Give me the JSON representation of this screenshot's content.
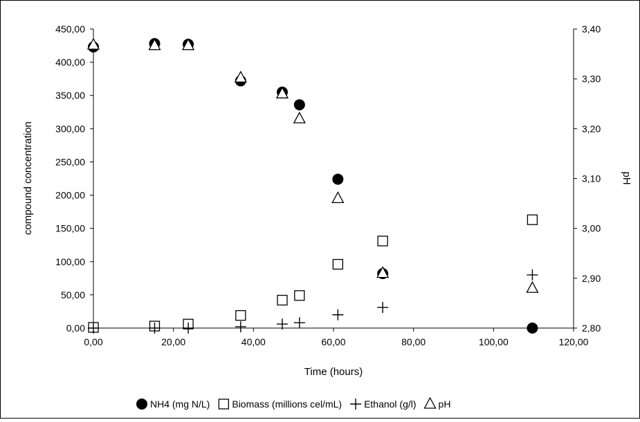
{
  "chart_data": {
    "type": "scatter",
    "xlabel": "Time (hours)",
    "ylabel": "compound concentration",
    "y2label": "pH",
    "xlim": [
      0,
      120
    ],
    "ylim": [
      0,
      450
    ],
    "y2lim": [
      2.8,
      3.4
    ],
    "x_ticks": [
      "0,00",
      "20,00",
      "40,00",
      "60,00",
      "80,00",
      "100,00",
      "120,00"
    ],
    "y_ticks": [
      "0,00",
      "50,00",
      "100,00",
      "150,00",
      "200,00",
      "250,00",
      "300,00",
      "350,00",
      "400,00",
      "450,00"
    ],
    "y2_ticks": [
      "2,80",
      "2,90",
      "3,00",
      "3,10",
      "3,20",
      "3,30",
      "3,40"
    ],
    "grid": false,
    "legend_position": "bottom",
    "series": [
      {
        "name": "NH4 (mg N/L)",
        "axis": "left",
        "marker": "filled-circle",
        "x": [
          0,
          15.3,
          23.7,
          36.8,
          47.2,
          51.5,
          61.1,
          72.3,
          109.7
        ],
        "y": [
          423,
          428,
          427,
          372,
          355,
          336,
          224,
          82,
          0
        ]
      },
      {
        "name": "Biomass (millions cel/mL)",
        "axis": "left",
        "marker": "open-square",
        "x": [
          0,
          15.3,
          23.7,
          36.8,
          47.2,
          51.5,
          61.1,
          72.3,
          109.7
        ],
        "y": [
          1,
          3,
          6,
          19,
          42,
          49,
          96,
          131,
          163
        ]
      },
      {
        "name": "Ethanol (g/l)",
        "axis": "left",
        "marker": "plus",
        "x": [
          0,
          15.3,
          23.7,
          36.8,
          47.2,
          51.5,
          61.1,
          72.3,
          109.7
        ],
        "y": [
          0,
          0,
          0,
          2,
          6,
          8,
          20,
          31,
          80
        ]
      },
      {
        "name": "pH",
        "axis": "right",
        "marker": "open-triangle",
        "x": [
          0,
          15.3,
          23.7,
          36.8,
          47.2,
          51.5,
          61.1,
          72.3,
          109.7
        ],
        "y": [
          3.368,
          3.367,
          3.367,
          3.302,
          3.27,
          3.22,
          3.06,
          2.91,
          2.88
        ]
      }
    ]
  }
}
